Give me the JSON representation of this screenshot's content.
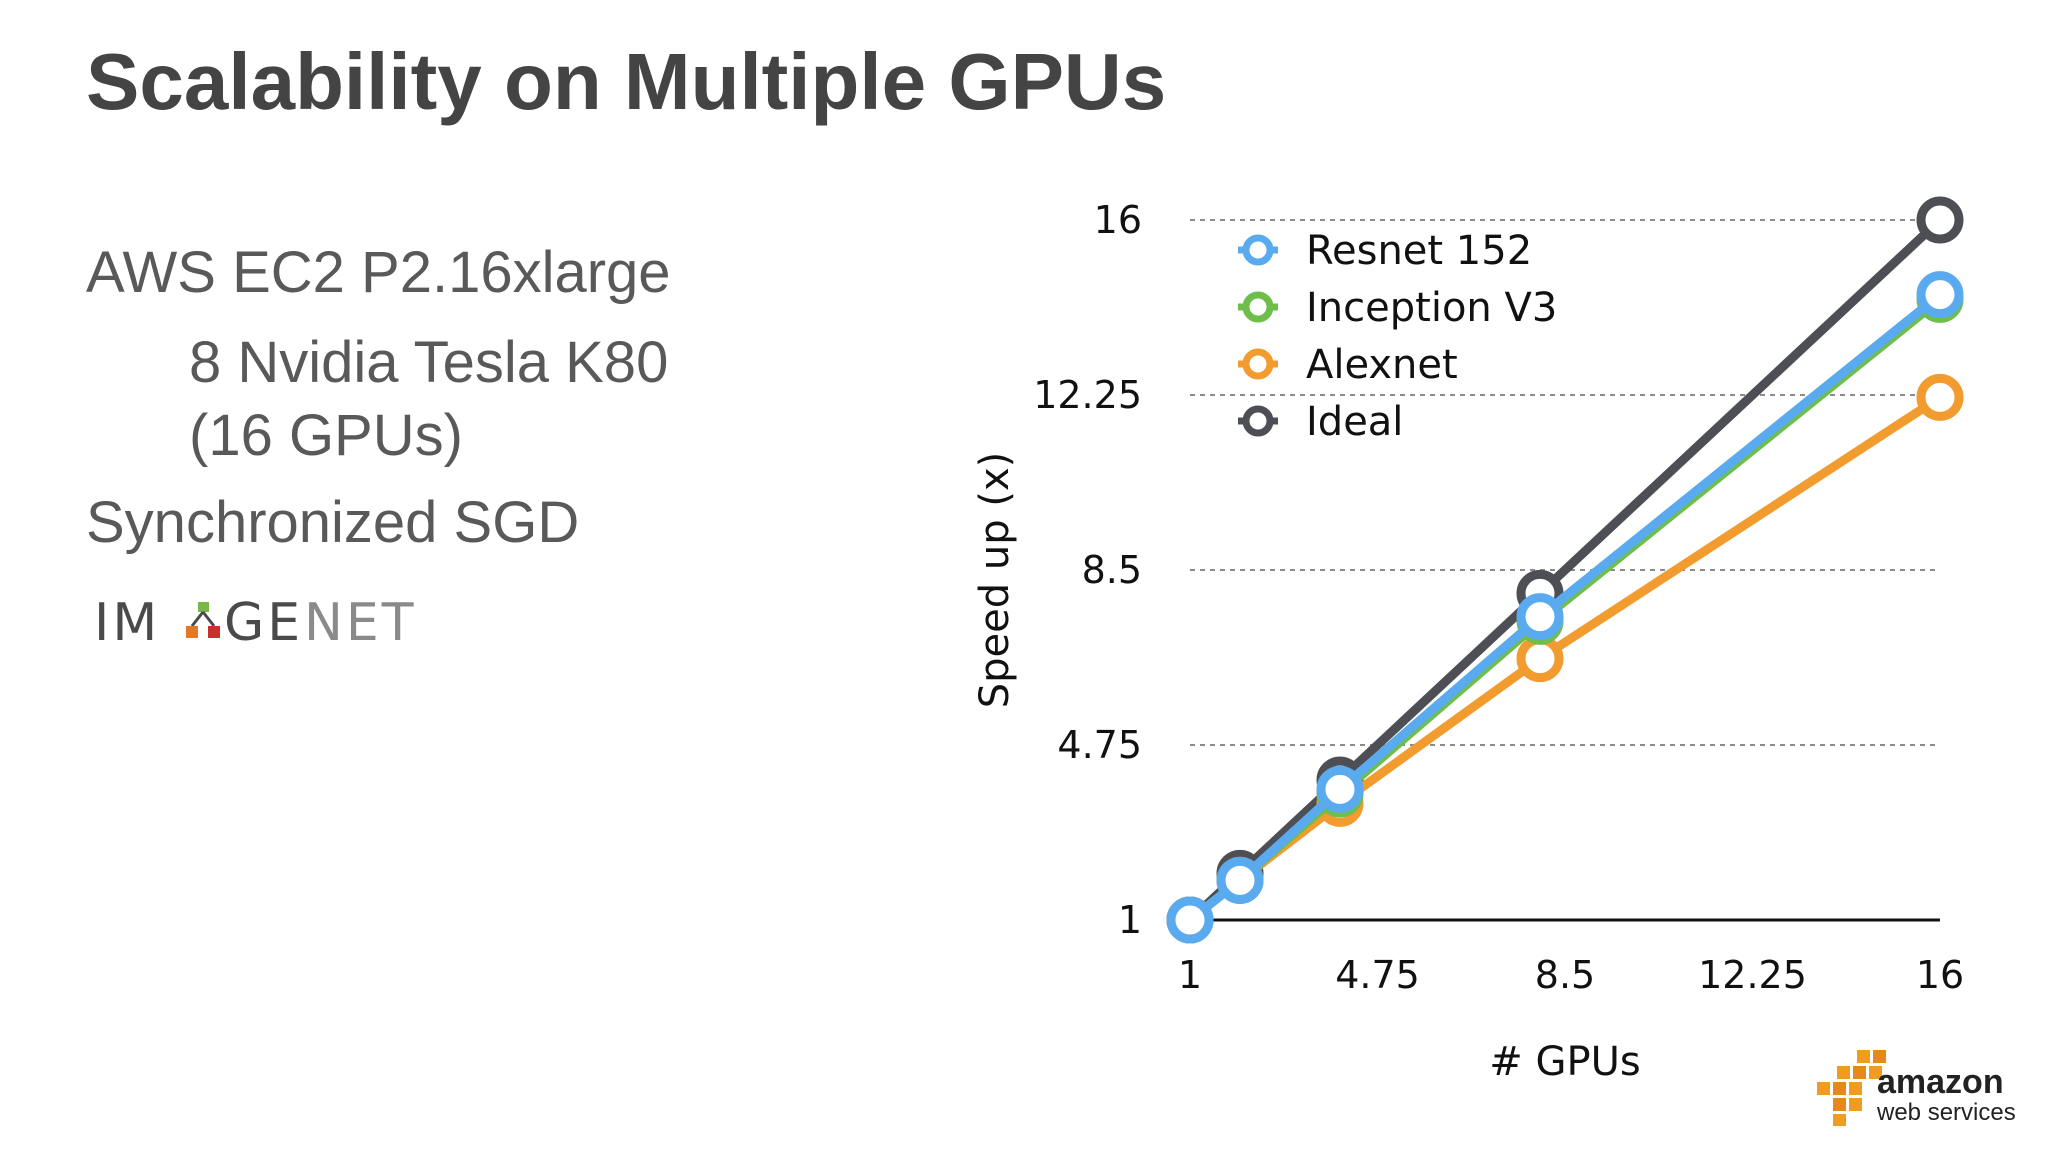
{
  "slide": {
    "title": "Scalability on Multiple GPUs",
    "bullets": [
      "AWS EC2 P2.16xlarge",
      "8 Nvidia Tesla K80",
      "(16 GPUs)",
      "Synchronized SGD"
    ]
  },
  "logos": {
    "imagenet": {
      "text": "IMAGENET",
      "colors": [
        "#4a4a4a",
        "#e07b24",
        "#7ab648",
        "#c9302c"
      ]
    },
    "aws": {
      "line1": "amazon",
      "line2": "web services",
      "color": "#f29c1f"
    }
  },
  "chart_data": {
    "type": "line",
    "xlabel": "# GPUs",
    "ylabel": "Speed up (x)",
    "xlim": [
      1,
      16
    ],
    "ylim": [
      1,
      16
    ],
    "xticks": [
      "1",
      "4.75",
      "8.5",
      "12.25",
      "16"
    ],
    "yticks": [
      "1",
      "4.75",
      "8.5",
      "12.25",
      "16"
    ],
    "grid": "horizontal dashed",
    "legend_position": "top-left",
    "series": [
      {
        "name": "Ideal",
        "color": "#4d4f54",
        "x": [
          1,
          2,
          4,
          8,
          16
        ],
        "y": [
          1,
          2,
          4,
          8,
          16
        ]
      },
      {
        "name": "Alexnet",
        "color": "#f29b2e",
        "x": [
          1,
          2,
          4,
          8,
          16
        ],
        "y": [
          1,
          1.85,
          3.5,
          6.6,
          12.2
        ]
      },
      {
        "name": "Inception V3",
        "color": "#6fbd4b",
        "x": [
          1,
          2,
          4,
          8,
          16
        ],
        "y": [
          1,
          1.85,
          3.7,
          7.4,
          14.3
        ]
      },
      {
        "name": "Resnet 152",
        "color": "#5aaaf0",
        "x": [
          1,
          2,
          4,
          8,
          16
        ],
        "y": [
          1,
          1.85,
          3.8,
          7.5,
          14.4
        ]
      }
    ],
    "legend_order": [
      "Resnet 152",
      "Inception V3",
      "Alexnet",
      "Ideal"
    ]
  }
}
